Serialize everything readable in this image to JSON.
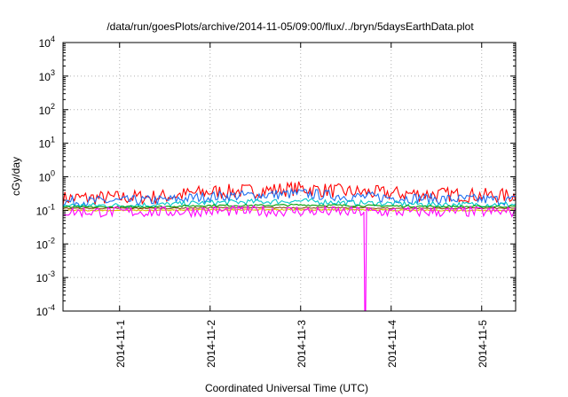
{
  "chart_data": {
    "type": "line",
    "title": "/data/run/goesPlots/archive/2014-11-05/09:00/flux/../bryn/5daysEarthData.plot",
    "xlabel": "Coordinated Universal Time (UTC)",
    "ylabel": "cGy/day",
    "y_scale": "log",
    "ylim": [
      0.0001,
      10000
    ],
    "y_ticks": [
      {
        "value": 0.0001,
        "base": "10",
        "exp": "-4"
      },
      {
        "value": 0.001,
        "base": "10",
        "exp": "-3"
      },
      {
        "value": 0.01,
        "base": "10",
        "exp": "-2"
      },
      {
        "value": 0.1,
        "base": "10",
        "exp": "-1"
      },
      {
        "value": 1,
        "base": "10",
        "exp": "0"
      },
      {
        "value": 10,
        "base": "10",
        "exp": "1"
      },
      {
        "value": 100,
        "base": "10",
        "exp": "2"
      },
      {
        "value": 1000,
        "base": "10",
        "exp": "3"
      },
      {
        "value": 10000,
        "base": "10",
        "exp": "4"
      }
    ],
    "xlim": [
      "2014-10-31 09:00",
      "2014-11-05 09:00"
    ],
    "x_ticks": [
      "2014-11-1",
      "2014-11-2",
      "2014-11-3",
      "2014-11-4",
      "2014-11-5"
    ],
    "grid": true,
    "legend": "none",
    "series": [
      {
        "color": "#ff0000",
        "x": [
          "2014-10-31 09:00",
          "2014-11-01 00:00",
          "2014-11-01 12:00",
          "2014-11-02 00:00",
          "2014-11-02 12:00",
          "2014-11-03 00:00",
          "2014-11-03 12:00",
          "2014-11-04 00:00",
          "2014-11-04 12:00",
          "2014-11-05 00:00",
          "2014-11-05 09:00"
        ],
        "values": [
          0.23,
          0.24,
          0.26,
          0.36,
          0.38,
          0.45,
          0.36,
          0.32,
          0.3,
          0.28,
          0.27
        ]
      },
      {
        "color": "#1e6ff0",
        "x": [
          "2014-10-31 09:00",
          "2014-11-01 00:00",
          "2014-11-01 12:00",
          "2014-11-02 00:00",
          "2014-11-02 12:00",
          "2014-11-03 00:00",
          "2014-11-03 12:00",
          "2014-11-04 00:00",
          "2014-11-04 12:00",
          "2014-11-05 00:00",
          "2014-11-05 09:00"
        ],
        "values": [
          0.18,
          0.19,
          0.2,
          0.26,
          0.28,
          0.32,
          0.26,
          0.24,
          0.22,
          0.21,
          0.2
        ]
      },
      {
        "color": "#00c8c8",
        "x": [
          "2014-10-31 09:00",
          "2014-11-01 00:00",
          "2014-11-01 12:00",
          "2014-11-02 00:00",
          "2014-11-02 12:00",
          "2014-11-03 00:00",
          "2014-11-03 12:00",
          "2014-11-04 00:00",
          "2014-11-04 12:00",
          "2014-11-05 00:00",
          "2014-11-05 09:00"
        ],
        "values": [
          0.14,
          0.14,
          0.15,
          0.17,
          0.18,
          0.19,
          0.17,
          0.16,
          0.15,
          0.15,
          0.15
        ]
      },
      {
        "color": "#009a00",
        "x": [
          "2014-10-31 09:00",
          "2014-11-01 00:00",
          "2014-11-01 12:00",
          "2014-11-02 00:00",
          "2014-11-02 12:00",
          "2014-11-03 00:00",
          "2014-11-03 12:00",
          "2014-11-04 00:00",
          "2014-11-04 12:00",
          "2014-11-05 00:00",
          "2014-11-05 09:00"
        ],
        "values": [
          0.125,
          0.125,
          0.13,
          0.14,
          0.14,
          0.145,
          0.14,
          0.135,
          0.13,
          0.13,
          0.13
        ]
      },
      {
        "color": "#8b4513",
        "x": [
          "2014-10-31 09:00",
          "2014-11-01 00:00",
          "2014-11-01 12:00",
          "2014-11-02 00:00",
          "2014-11-02 12:00",
          "2014-11-03 00:00",
          "2014-11-03 12:00",
          "2014-11-04 00:00",
          "2014-11-04 12:00",
          "2014-11-05 00:00",
          "2014-11-05 09:00"
        ],
        "values": [
          0.115,
          0.115,
          0.115,
          0.12,
          0.12,
          0.12,
          0.12,
          0.115,
          0.115,
          0.115,
          0.115
        ]
      },
      {
        "color": "#e0c000",
        "x": [
          "2014-10-31 09:00",
          "2014-11-01 00:00",
          "2014-11-01 12:00",
          "2014-11-02 00:00",
          "2014-11-02 12:00",
          "2014-11-03 00:00",
          "2014-11-03 12:00",
          "2014-11-04 00:00",
          "2014-11-04 12:00",
          "2014-11-05 00:00",
          "2014-11-05 09:00"
        ],
        "values": [
          0.1,
          0.1,
          0.1,
          0.105,
          0.105,
          0.105,
          0.105,
          0.1,
          0.1,
          0.1,
          0.1
        ]
      },
      {
        "color": "#ff00ff",
        "x": [
          "2014-10-31 09:00",
          "2014-11-01 00:00",
          "2014-11-01 12:00",
          "2014-11-02 00:00",
          "2014-11-02 12:00",
          "2014-11-03 00:00",
          "2014-11-03 12:00",
          "2014-11-03 16:30",
          "2014-11-03 17:00",
          "2014-11-03 17:30",
          "2014-11-04 00:00",
          "2014-11-04 12:00",
          "2014-11-05 00:00",
          "2014-11-05 09:00"
        ],
        "values": [
          0.09,
          0.09,
          0.09,
          0.095,
          0.095,
          0.095,
          0.09,
          0.09,
          0.0001,
          0.09,
          0.09,
          0.09,
          0.09,
          0.09
        ]
      }
    ]
  }
}
